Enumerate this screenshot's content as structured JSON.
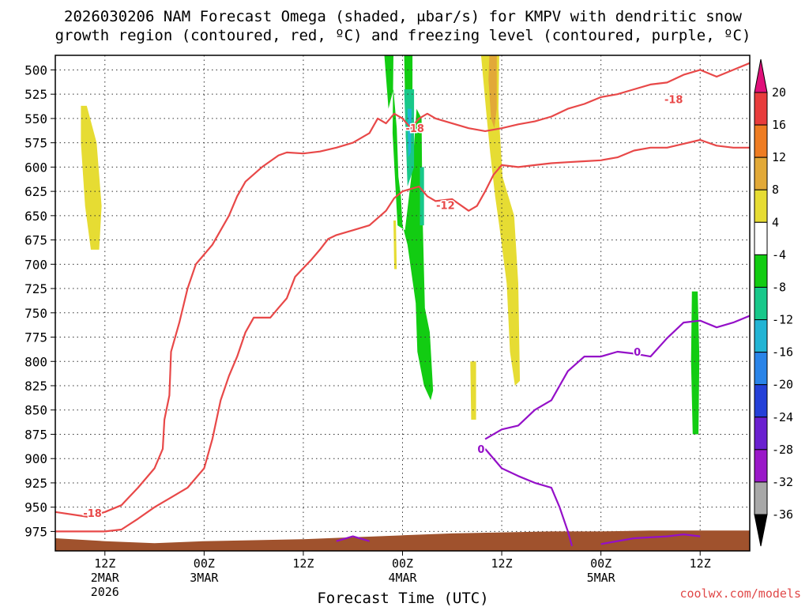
{
  "chart_data": {
    "type": "heatmap",
    "title_line1": "2026030206 NAM Forecast Omega (shaded, μbar/s) for KMPV with dendritic snow",
    "title_line2": "growth region (contoured, red, ºC) and freezing level (contoured, purple, ºC)",
    "xlabel": "Forecast Time (UTC)",
    "credit": "coolwx.com/models",
    "x_range_hours": [
      0,
      84
    ],
    "y_range_mb": [
      485,
      995
    ],
    "y_ticks": [
      500,
      525,
      550,
      575,
      600,
      625,
      650,
      675,
      700,
      725,
      750,
      775,
      800,
      825,
      850,
      875,
      900,
      925,
      950,
      975
    ],
    "x_ticks": [
      {
        "t": 6,
        "line1": "12Z",
        "line2": "2MAR",
        "line3": "2026"
      },
      {
        "t": 18,
        "line1": "00Z",
        "line2": "3MAR",
        "line3": ""
      },
      {
        "t": 30,
        "line1": "12Z",
        "line2": "",
        "line3": ""
      },
      {
        "t": 42,
        "line1": "00Z",
        "line2": "4MAR",
        "line3": ""
      },
      {
        "t": 54,
        "line1": "12Z",
        "line2": "",
        "line3": ""
      },
      {
        "t": 66,
        "line1": "00Z",
        "line2": "5MAR",
        "line3": ""
      },
      {
        "t": 78,
        "line1": "12Z",
        "line2": "",
        "line3": ""
      }
    ],
    "colorbar": {
      "labels": [
        "20",
        "16",
        "12",
        "8",
        "4",
        "-4",
        "-8",
        "-12",
        "-16",
        "-20",
        "-24",
        "-28",
        "-32",
        "-36"
      ],
      "bands": [
        {
          "from": 16,
          "to": 20,
          "color": "#e83c3c"
        },
        {
          "from": 12,
          "to": 16,
          "color": "#ee7c22"
        },
        {
          "from": 8,
          "to": 12,
          "color": "#e2a938"
        },
        {
          "from": 4,
          "to": 8,
          "color": "#e6dc33"
        },
        {
          "from": -4,
          "to": 4,
          "color": "#ffffff"
        },
        {
          "from": -8,
          "to": -4,
          "color": "#12cc12"
        },
        {
          "from": -12,
          "to": -8,
          "color": "#18c88a"
        },
        {
          "from": -16,
          "to": -12,
          "color": "#22b4d4"
        },
        {
          "from": -20,
          "to": -16,
          "color": "#2a84e8"
        },
        {
          "from": -24,
          "to": -20,
          "color": "#2440d8"
        },
        {
          "from": -28,
          "to": -24,
          "color": "#6a20d0"
        },
        {
          "from": -32,
          "to": -28,
          "color": "#9a18c8"
        },
        {
          "from": -36,
          "to": -32,
          "color": "#a8a8a8"
        }
      ],
      "top_arrow_color": "#e0107a",
      "bottom_arrow_color": "#000000"
    },
    "omega_regions": [
      {
        "level": "4",
        "color": "#e6dc33",
        "points": [
          [
            3.1,
            537
          ],
          [
            3.8,
            537
          ],
          [
            5.0,
            575
          ],
          [
            5.6,
            640
          ],
          [
            5.3,
            685
          ],
          [
            4.3,
            685
          ],
          [
            3.6,
            640
          ],
          [
            3.1,
            575
          ]
        ]
      },
      {
        "level": "4",
        "color": "#e6dc33",
        "points": [
          [
            40.9,
            655
          ],
          [
            41.2,
            655
          ],
          [
            41.3,
            705
          ],
          [
            41.0,
            705
          ]
        ]
      },
      {
        "level": "-4",
        "color": "#12cc12",
        "points": [
          [
            39.8,
            485
          ],
          [
            40.9,
            485
          ],
          [
            40.8,
            565
          ],
          [
            41.4,
            660
          ],
          [
            42.3,
            665
          ],
          [
            43.2,
            600
          ],
          [
            43.7,
            540
          ],
          [
            44.3,
            550
          ],
          [
            44.4,
            640
          ],
          [
            44.7,
            745
          ],
          [
            45.3,
            770
          ],
          [
            45.7,
            830
          ],
          [
            45.4,
            840
          ],
          [
            44.6,
            825
          ],
          [
            43.8,
            790
          ],
          [
            43.6,
            740
          ],
          [
            42.6,
            680
          ],
          [
            42.0,
            660
          ],
          [
            41.8,
            630
          ],
          [
            41.5,
            610
          ],
          [
            41.3,
            560
          ],
          [
            40.9,
            520
          ],
          [
            40.3,
            540
          ]
        ]
      },
      {
        "level": "-4",
        "color": "#12cc12",
        "points": [
          [
            42.2,
            485
          ],
          [
            43.2,
            485
          ],
          [
            43.2,
            560
          ],
          [
            42.4,
            570
          ]
        ]
      },
      {
        "level": "-8",
        "color": "#18c88a",
        "points": [
          [
            42.2,
            520
          ],
          [
            43.4,
            520
          ],
          [
            43.4,
            600
          ],
          [
            42.6,
            620
          ]
        ]
      },
      {
        "level": "-8",
        "color": "#18c88a",
        "points": [
          [
            44.1,
            600
          ],
          [
            44.6,
            600
          ],
          [
            44.6,
            660
          ],
          [
            44.1,
            660
          ]
        ]
      },
      {
        "level": "-12",
        "color": "#22b4d4",
        "points": [
          [
            42.6,
            540
          ],
          [
            43.1,
            540
          ],
          [
            43.0,
            585
          ],
          [
            42.7,
            590
          ]
        ]
      },
      {
        "level": "4",
        "color": "#e6dc33",
        "points": [
          [
            51.5,
            485
          ],
          [
            53.7,
            485
          ],
          [
            53.6,
            540
          ],
          [
            54.1,
            610
          ],
          [
            55.5,
            650
          ],
          [
            56.0,
            720
          ],
          [
            56.2,
            820
          ],
          [
            55.6,
            825
          ],
          [
            55.0,
            790
          ],
          [
            54.6,
            720
          ],
          [
            53.7,
            660
          ],
          [
            53.2,
            630
          ],
          [
            52.6,
            585
          ],
          [
            52.2,
            550
          ]
        ]
      },
      {
        "level": "8",
        "color": "#e2a938",
        "points": [
          [
            52.5,
            485
          ],
          [
            53.4,
            485
          ],
          [
            53.4,
            540
          ],
          [
            53.1,
            560
          ],
          [
            52.7,
            550
          ],
          [
            52.4,
            510
          ]
        ]
      },
      {
        "level": "4",
        "color": "#e6dc33",
        "points": [
          [
            50.2,
            800
          ],
          [
            50.9,
            800
          ],
          [
            50.9,
            860
          ],
          [
            50.3,
            860
          ]
        ]
      },
      {
        "level": "-4",
        "color": "#12cc12",
        "points": [
          [
            77.0,
            728
          ],
          [
            77.7,
            728
          ],
          [
            77.9,
            795
          ],
          [
            77.8,
            875
          ],
          [
            77.1,
            875
          ],
          [
            76.9,
            800
          ]
        ]
      }
    ],
    "temperature_contours": [
      {
        "level": "-18",
        "color": "#e84848",
        "label_at": [
          74.8,
          530
        ],
        "points": [
          [
            0,
            955
          ],
          [
            4,
            960
          ],
          [
            6,
            955
          ],
          [
            8,
            948
          ],
          [
            10,
            930
          ],
          [
            12,
            910
          ],
          [
            13,
            890
          ],
          [
            13.2,
            860
          ],
          [
            13.8,
            835
          ],
          [
            14,
            790
          ],
          [
            15,
            760
          ],
          [
            16,
            725
          ],
          [
            17,
            700
          ],
          [
            19,
            680
          ],
          [
            21,
            650
          ],
          [
            22,
            630
          ],
          [
            23,
            615
          ],
          [
            25,
            600
          ],
          [
            27,
            588
          ],
          [
            28,
            585
          ],
          [
            30,
            586
          ],
          [
            32,
            584
          ],
          [
            34,
            580
          ],
          [
            36,
            575
          ],
          [
            38,
            565
          ],
          [
            39,
            550
          ],
          [
            40,
            555
          ],
          [
            41,
            545
          ],
          [
            42,
            550
          ],
          [
            43,
            560
          ],
          [
            44,
            550
          ],
          [
            45,
            545
          ],
          [
            46,
            550
          ],
          [
            48,
            555
          ],
          [
            50,
            560
          ],
          [
            52,
            563
          ],
          [
            54,
            560
          ],
          [
            56,
            556
          ],
          [
            58,
            553
          ],
          [
            60,
            548
          ],
          [
            62,
            540
          ],
          [
            64,
            535
          ],
          [
            66,
            528
          ],
          [
            68,
            525
          ],
          [
            70,
            520
          ],
          [
            72,
            515
          ],
          [
            74,
            513
          ],
          [
            76,
            505
          ],
          [
            78,
            500
          ],
          [
            80,
            507
          ],
          [
            82,
            500
          ],
          [
            84,
            493
          ]
        ]
      },
      {
        "level": "-12",
        "color": "#e84848",
        "label_at": [
          47.2,
          639
        ],
        "points": [
          [
            0,
            975
          ],
          [
            6,
            975
          ],
          [
            8,
            973
          ],
          [
            10,
            962
          ],
          [
            12,
            950
          ],
          [
            14,
            940
          ],
          [
            16,
            930
          ],
          [
            18,
            910
          ],
          [
            19,
            880
          ],
          [
            20,
            840
          ],
          [
            21,
            815
          ],
          [
            22,
            795
          ],
          [
            23,
            770
          ],
          [
            24,
            755
          ],
          [
            26,
            755
          ],
          [
            27,
            745
          ],
          [
            28,
            735
          ],
          [
            29,
            713
          ],
          [
            30,
            704
          ],
          [
            31,
            695
          ],
          [
            32,
            685
          ],
          [
            33,
            674
          ],
          [
            34,
            670
          ],
          [
            36,
            665
          ],
          [
            38,
            660
          ],
          [
            40,
            645
          ],
          [
            41,
            632
          ],
          [
            42,
            625
          ],
          [
            44,
            620
          ],
          [
            45,
            630
          ],
          [
            46,
            635
          ],
          [
            48,
            633
          ],
          [
            50,
            645
          ],
          [
            51,
            640
          ],
          [
            52,
            625
          ],
          [
            53,
            608
          ],
          [
            54,
            598
          ],
          [
            56,
            600
          ],
          [
            58,
            598
          ],
          [
            60,
            596
          ],
          [
            62,
            595
          ],
          [
            64,
            594
          ],
          [
            66,
            593
          ],
          [
            68,
            590
          ],
          [
            70,
            583
          ],
          [
            72,
            580
          ],
          [
            74,
            580
          ],
          [
            76,
            576
          ],
          [
            78,
            572
          ],
          [
            80,
            578
          ],
          [
            82,
            580
          ],
          [
            84,
            580
          ]
        ]
      }
    ],
    "freezing_level_contour": {
      "level": "0",
      "color": "#9410c8",
      "label_at": [
        70.4,
        790
      ],
      "points": [
        [
          52,
          880
        ],
        [
          54,
          870
        ],
        [
          56,
          866
        ],
        [
          58,
          850
        ],
        [
          60,
          840
        ],
        [
          62,
          810
        ],
        [
          64,
          795
        ],
        [
          66,
          795
        ],
        [
          68,
          790
        ],
        [
          70,
          792
        ],
        [
          72,
          795
        ],
        [
          74,
          776
        ],
        [
          76,
          760
        ],
        [
          78,
          758
        ],
        [
          80,
          765
        ],
        [
          82,
          760
        ],
        [
          84,
          753
        ]
      ]
    },
    "freezing_level_lower": {
      "color": "#9410c8",
      "points": [
        [
          34,
          985
        ],
        [
          36,
          980
        ],
        [
          38,
          985
        ]
      ]
    },
    "freezing_level_lower2": {
      "color": "#9410c8",
      "points": [
        [
          52,
          890
        ],
        [
          54,
          910
        ],
        [
          56,
          918
        ],
        [
          58,
          925
        ],
        [
          60,
          930
        ],
        [
          61,
          950
        ],
        [
          62,
          975
        ],
        [
          62.5,
          990
        ]
      ]
    },
    "freezing_level_lower3": {
      "color": "#9410c8",
      "points": [
        [
          66,
          988
        ],
        [
          70,
          982
        ],
        [
          74,
          980
        ],
        [
          76,
          978
        ],
        [
          78,
          980
        ]
      ]
    },
    "terrain": {
      "color": "#a0522d",
      "surface_mb": [
        [
          0,
          982
        ],
        [
          6,
          985
        ],
        [
          12,
          987
        ],
        [
          18,
          985
        ],
        [
          24,
          984
        ],
        [
          30,
          983
        ],
        [
          36,
          981
        ],
        [
          42,
          979
        ],
        [
          48,
          977
        ],
        [
          54,
          976
        ],
        [
          60,
          975
        ],
        [
          66,
          975
        ],
        [
          72,
          974
        ],
        [
          78,
          974
        ],
        [
          84,
          974
        ]
      ]
    }
  }
}
